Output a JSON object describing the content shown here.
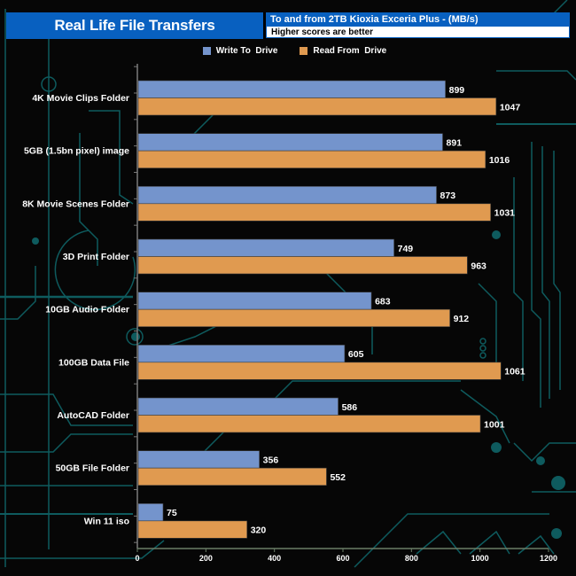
{
  "header": {
    "title": "Real Life File Transfers",
    "subtitle": "To and from 2TB Kioxia Exceria Plus - (MB/s)",
    "note": "Higher scores are better"
  },
  "colors": {
    "write": "#7494cc",
    "read": "#e09a50",
    "header_blue": "#0860c0",
    "axis": "#6a7d66",
    "circuit": "#0e5b5e"
  },
  "chart_data": {
    "type": "bar",
    "orientation": "horizontal",
    "title": "Real Life File Transfers",
    "subtitle": "To and from 2TB Kioxia Exceria Plus - (MB/s)",
    "note": "Higher scores are better",
    "xlabel": "",
    "ylabel": "",
    "xlim": [
      0,
      1200
    ],
    "xticks": [
      0,
      200,
      400,
      600,
      800,
      1000,
      1200
    ],
    "legend_position": "top-center",
    "grid": false,
    "categories": [
      "4K Movie Clips Folder",
      "5GB (1.5bn pixel) image",
      "8K Movie Scenes Folder",
      "3D Print Folder",
      "10GB Audio Folder",
      "100GB Data File",
      "AutoCAD Folder",
      "50GB File Folder",
      "Win 11 iso"
    ],
    "series": [
      {
        "name": "Write To  Drive",
        "values": [
          899,
          891,
          873,
          749,
          683,
          605,
          586,
          356,
          75
        ]
      },
      {
        "name": "Read From  Drive",
        "values": [
          1047,
          1016,
          1031,
          963,
          912,
          1061,
          1001,
          552,
          320
        ]
      }
    ]
  }
}
